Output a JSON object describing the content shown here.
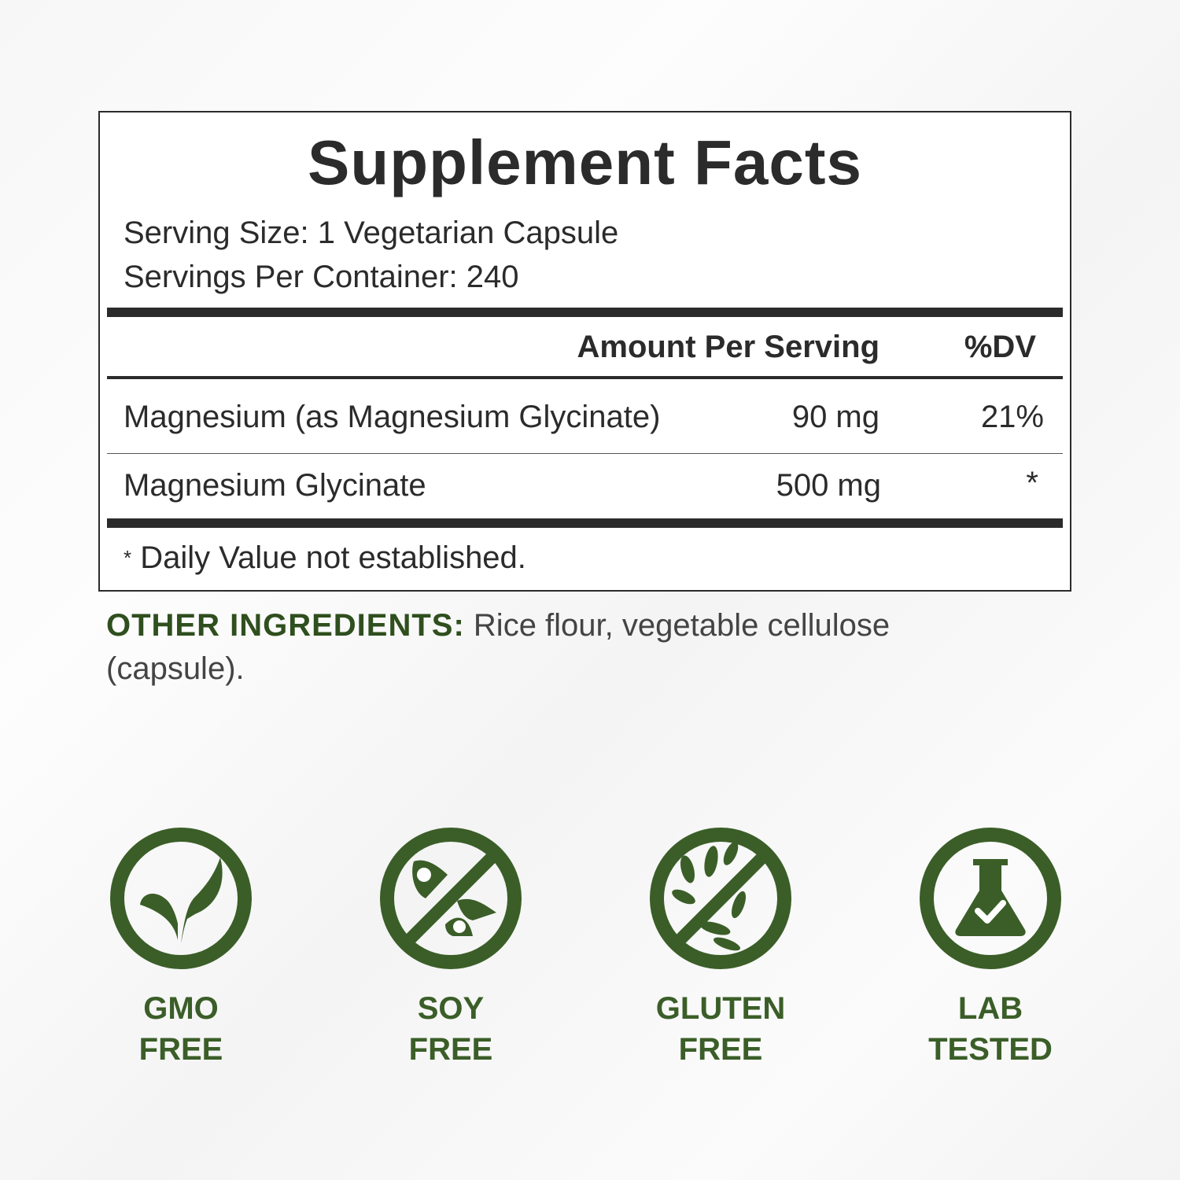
{
  "facts": {
    "title": "Supplement Facts",
    "serving_size": "Serving Size: 1 Vegetarian Capsule",
    "servings_per_container": "Servings Per Container: 240",
    "header_amount": "Amount Per Serving",
    "header_dv": "%DV",
    "rows": [
      {
        "name": "Magnesium (as Magnesium Glycinate)",
        "amount": "90 mg",
        "dv": "21%"
      },
      {
        "name": "Magnesium Glycinate",
        "amount": "500 mg",
        "dv": "*"
      }
    ],
    "footnote_mark": "*",
    "footnote": "Daily Value not established."
  },
  "other_ingredients": {
    "label": "OTHER INGREDIENTS:",
    "text": "Rice flour, vegetable cellulose (capsule)."
  },
  "badges": [
    {
      "icon": "leaf-icon",
      "line1": "GMO",
      "line2": "FREE"
    },
    {
      "icon": "no-soy-icon",
      "line1": "SOY",
      "line2": "FREE"
    },
    {
      "icon": "no-wheat-icon",
      "line1": "GLUTEN",
      "line2": "FREE"
    },
    {
      "icon": "flask-check-icon",
      "line1": "LAB",
      "line2": "TESTED"
    }
  ],
  "colors": {
    "brand_green": "#3b5e28",
    "text": "#2b2b2b"
  }
}
